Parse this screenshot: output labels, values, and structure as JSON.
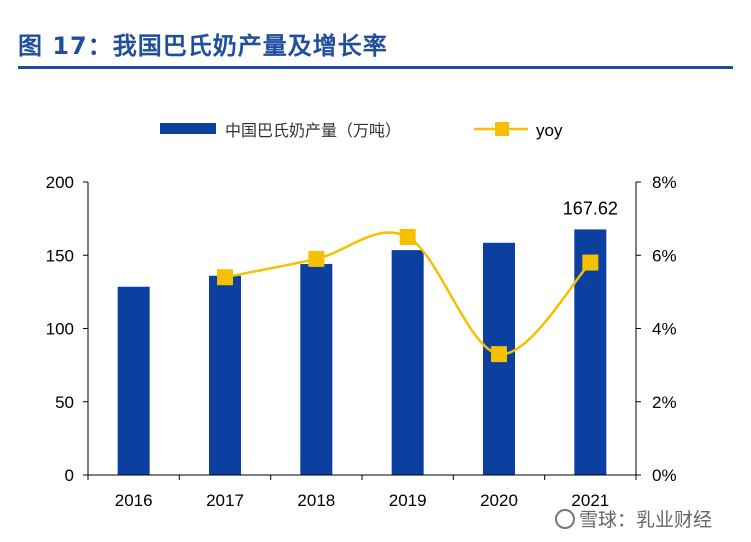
{
  "header": {
    "title": "图 17：我国巴氏奶产量及增长率"
  },
  "watermark": {
    "text": "雪球：乳业财经"
  },
  "chart_data": {
    "type": "bar",
    "title": "",
    "xlabel": "",
    "ylabel": "",
    "categories": [
      "2016",
      "2017",
      "2018",
      "2019",
      "2020",
      "2021"
    ],
    "ylim": [
      0,
      200
    ],
    "y_ticks": [
      "0",
      "50",
      "100",
      "150",
      "200"
    ],
    "y2lim": [
      0,
      8
    ],
    "y2_ticks": [
      "0%",
      "2%",
      "4%",
      "6%",
      "8%"
    ],
    "grid": false,
    "legend_placement": "top-center",
    "series": [
      {
        "name": "中国巴氏奶产量（万吨）",
        "type": "bar",
        "axis": "left",
        "color": "#0b3fa0",
        "values": [
          128.5,
          136.0,
          144.0,
          153.5,
          158.5,
          167.62
        ]
      },
      {
        "name": "yoy",
        "type": "line",
        "axis": "right",
        "color": "#f5c000",
        "values": [
          null,
          5.4,
          5.9,
          6.5,
          3.3,
          5.8
        ]
      }
    ],
    "annotations": [
      {
        "series": 0,
        "index": 5,
        "text": "167.62"
      }
    ]
  }
}
